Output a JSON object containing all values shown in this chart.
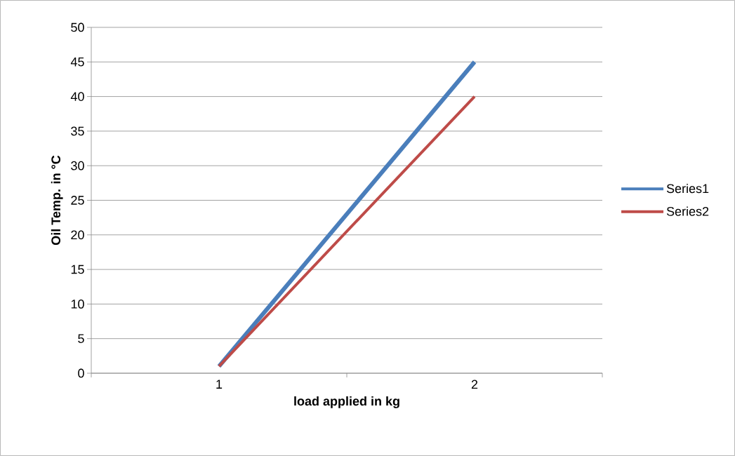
{
  "chart_data": {
    "type": "line",
    "xlabel": "load applied in kg",
    "ylabel": "Oil Temp. in °C",
    "categories": [
      "1",
      "2"
    ],
    "series": [
      {
        "name": "Series1",
        "color": "#4a7ebb",
        "values": [
          1,
          45
        ]
      },
      {
        "name": "Series2",
        "color": "#be4b48",
        "values": [
          1,
          40
        ]
      }
    ],
    "ylim": [
      0,
      50
    ],
    "yticks": [
      0,
      5,
      10,
      15,
      20,
      25,
      30,
      35,
      40,
      45,
      50
    ],
    "grid": "y",
    "legend": "right",
    "marker": "none",
    "line_style": "solid"
  }
}
